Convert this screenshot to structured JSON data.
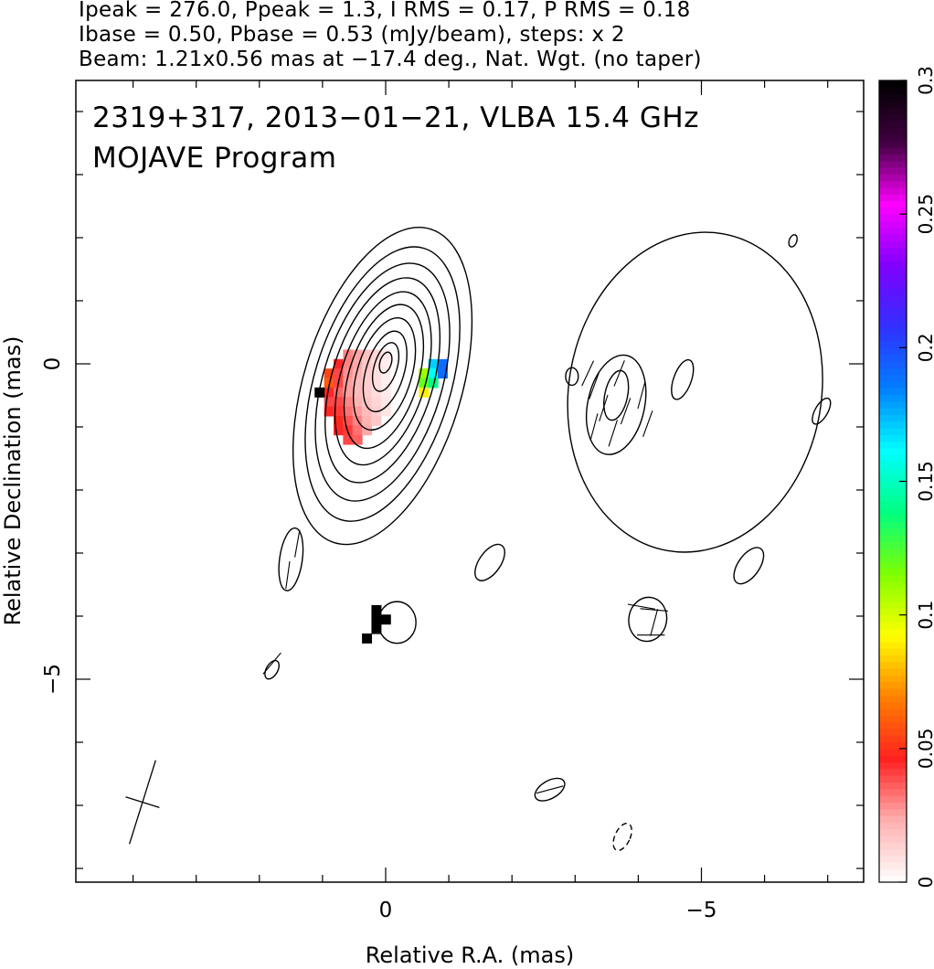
{
  "header": {
    "line1": "Ipeak = 276.0, Ppeak = 1.3, I RMS = 0.17, P RMS = 0.18",
    "line2": "Ibase = 0.50, Pbase = 0.53 (mJy/beam), steps: x 2",
    "line3": "Beam: 1.21x0.56 mas at −17.4 deg., Nat. Wgt. (no taper)"
  },
  "plot": {
    "title_line1": "2319+317, 2013−01−21, VLBA 15.4 GHz",
    "title_line2": "MOJAVE Program",
    "xlabel": "Relative R.A. (mas)",
    "ylabel": "Relative Declination (mas)",
    "x_ticks": [
      {
        "value": 0,
        "label": "0"
      },
      {
        "value": -5,
        "label": "−5"
      }
    ],
    "y_ticks": [
      {
        "value": 0,
        "label": "0"
      },
      {
        "value": -5,
        "label": "−5"
      }
    ],
    "colorbar": {
      "ticks": [
        {
          "value": 0,
          "label": "0"
        },
        {
          "value": 0.05,
          "label": "0.05"
        },
        {
          "value": 0.1,
          "label": "0.1"
        },
        {
          "value": 0.15,
          "label": "0.15"
        },
        {
          "value": 0.2,
          "label": "0.2"
        },
        {
          "value": 0.25,
          "label": "0.25"
        },
        {
          "value": 0.3,
          "label": "0.3"
        }
      ]
    }
  },
  "chart_data": {
    "type": "heatmap",
    "description_source": "VLBA total-intensity contour map with fractional polarization color overlay",
    "xlim": [
      4.9,
      -7.9
    ],
    "ylim": [
      -8.2,
      4.5
    ],
    "x_reversed": true,
    "grid": false,
    "colorbar_range": [
      0,
      0.3
    ],
    "contours": [
      {
        "name": "core-level-1",
        "cx": 0.05,
        "cy": -0.35,
        "a": 2.6,
        "b": 1.25,
        "pa": -17
      },
      {
        "name": "core-level-2",
        "cx": 0.05,
        "cy": -0.32,
        "a": 2.25,
        "b": 1.08,
        "pa": -17
      },
      {
        "name": "core-level-3",
        "cx": 0.05,
        "cy": -0.29,
        "a": 1.95,
        "b": 0.94,
        "pa": -17
      },
      {
        "name": "core-level-4",
        "cx": 0.05,
        "cy": -0.26,
        "a": 1.68,
        "b": 0.8,
        "pa": -17
      },
      {
        "name": "core-level-5",
        "cx": 0.04,
        "cy": -0.23,
        "a": 1.42,
        "b": 0.67,
        "pa": -17
      },
      {
        "name": "core-level-6",
        "cx": 0.03,
        "cy": -0.2,
        "a": 1.18,
        "b": 0.55,
        "pa": -17
      },
      {
        "name": "core-level-7",
        "cx": 0.02,
        "cy": -0.16,
        "a": 0.92,
        "b": 0.43,
        "pa": -17
      },
      {
        "name": "core-level-8",
        "cx": 0.01,
        "cy": -0.12,
        "a": 0.66,
        "b": 0.3,
        "pa": -17
      },
      {
        "name": "core-level-9",
        "cx": 0.0,
        "cy": -0.05,
        "a": 0.4,
        "b": 0.18,
        "pa": -17
      },
      {
        "name": "core-level-10",
        "cx": 0.0,
        "cy": 0.02,
        "a": 0.17,
        "b": 0.09,
        "pa": -17
      },
      {
        "name": "jet-outer",
        "cx": -4.9,
        "cy": -0.45,
        "a": 2.55,
        "b": 2.0,
        "pa": -10
      },
      {
        "name": "jet-inner",
        "cx": -3.65,
        "cy": -0.65,
        "a": 0.8,
        "b": 0.45,
        "pa": -12
      },
      {
        "name": "jet-peak",
        "cx": -3.65,
        "cy": -0.5,
        "a": 0.4,
        "b": 0.18,
        "pa": -12
      },
      {
        "name": "jet-knot-east",
        "cx": -2.95,
        "cy": -0.2,
        "a": 0.14,
        "b": 0.1,
        "pa": 0
      },
      {
        "name": "jet-knot-west",
        "cx": -4.7,
        "cy": -0.25,
        "a": 0.33,
        "b": 0.14,
        "pa": -20
      },
      {
        "name": "island-a",
        "cx": 1.5,
        "cy": -3.1,
        "a": 0.5,
        "b": 0.18,
        "pa": -8
      },
      {
        "name": "island-b",
        "cx": -1.65,
        "cy": -3.15,
        "a": 0.33,
        "b": 0.17,
        "pa": -35
      },
      {
        "name": "island-c",
        "cx": -5.75,
        "cy": -3.2,
        "a": 0.33,
        "b": 0.17,
        "pa": -35
      },
      {
        "name": "island-d",
        "cx": -0.18,
        "cy": -4.1,
        "a": 0.33,
        "b": 0.3,
        "pa": 0
      },
      {
        "name": "island-e",
        "cx": -4.15,
        "cy": -4.05,
        "a": 0.35,
        "b": 0.3,
        "pa": -10
      },
      {
        "name": "island-f",
        "cx": 1.8,
        "cy": -4.85,
        "a": 0.16,
        "b": 0.09,
        "pa": -30
      },
      {
        "name": "island-g",
        "cx": -2.6,
        "cy": -6.75,
        "a": 0.26,
        "b": 0.14,
        "pa": -60
      },
      {
        "name": "island-h",
        "cx": -6.9,
        "cy": -0.75,
        "a": 0.23,
        "b": 0.1,
        "pa": -30
      },
      {
        "name": "island-i",
        "cx": -6.45,
        "cy": 1.95,
        "a": 0.1,
        "b": 0.06,
        "pa": -20
      }
    ],
    "negative_contours": [
      {
        "name": "neg-island",
        "cx": -3.75,
        "cy": -7.5,
        "a": 0.23,
        "b": 0.12,
        "pa": -25
      }
    ],
    "beam": {
      "cx": 3.85,
      "cy": -6.95,
      "major": 1.21,
      "minor": 0.56,
      "pa": -17.4
    },
    "polarization_pixels": [
      {
        "x": 0.9,
        "y": -0.15,
        "v": 0.055
      },
      {
        "x": 0.9,
        "y": -0.3,
        "v": 0.06
      },
      {
        "x": 0.9,
        "y": -0.45,
        "v": 0.045
      },
      {
        "x": 0.9,
        "y": -0.6,
        "v": 0.04
      },
      {
        "x": 0.9,
        "y": -0.75,
        "v": 0.045
      },
      {
        "x": 0.75,
        "y": 0.0,
        "v": 0.045
      },
      {
        "x": 0.75,
        "y": -0.15,
        "v": 0.04
      },
      {
        "x": 0.75,
        "y": -0.3,
        "v": 0.04
      },
      {
        "x": 0.75,
        "y": -0.45,
        "v": 0.035
      },
      {
        "x": 0.75,
        "y": -0.6,
        "v": 0.04
      },
      {
        "x": 0.75,
        "y": -0.75,
        "v": 0.042
      },
      {
        "x": 0.75,
        "y": -0.9,
        "v": 0.048
      },
      {
        "x": 0.75,
        "y": -1.05,
        "v": 0.045
      },
      {
        "x": 0.6,
        "y": 0.15,
        "v": 0.03
      },
      {
        "x": 0.6,
        "y": 0.0,
        "v": 0.03
      },
      {
        "x": 0.6,
        "y": -0.15,
        "v": 0.028
      },
      {
        "x": 0.6,
        "y": -0.3,
        "v": 0.026
      },
      {
        "x": 0.6,
        "y": -0.45,
        "v": 0.026
      },
      {
        "x": 0.6,
        "y": -0.6,
        "v": 0.03
      },
      {
        "x": 0.6,
        "y": -0.75,
        "v": 0.033
      },
      {
        "x": 0.6,
        "y": -0.9,
        "v": 0.038
      },
      {
        "x": 0.6,
        "y": -1.05,
        "v": 0.042
      },
      {
        "x": 0.6,
        "y": -1.2,
        "v": 0.04
      },
      {
        "x": 0.45,
        "y": 0.15,
        "v": 0.025
      },
      {
        "x": 0.45,
        "y": 0.0,
        "v": 0.024
      },
      {
        "x": 0.45,
        "y": -0.15,
        "v": 0.022
      },
      {
        "x": 0.45,
        "y": -0.3,
        "v": 0.02
      },
      {
        "x": 0.45,
        "y": -0.45,
        "v": 0.02
      },
      {
        "x": 0.45,
        "y": -0.6,
        "v": 0.022
      },
      {
        "x": 0.45,
        "y": -0.75,
        "v": 0.026
      },
      {
        "x": 0.45,
        "y": -0.9,
        "v": 0.03
      },
      {
        "x": 0.45,
        "y": -1.05,
        "v": 0.033
      },
      {
        "x": 0.45,
        "y": -1.2,
        "v": 0.036
      },
      {
        "x": 0.3,
        "y": 0.15,
        "v": 0.018
      },
      {
        "x": 0.3,
        "y": 0.0,
        "v": 0.016
      },
      {
        "x": 0.3,
        "y": -0.15,
        "v": 0.015
      },
      {
        "x": 0.3,
        "y": -0.3,
        "v": 0.014
      },
      {
        "x": 0.3,
        "y": -0.45,
        "v": 0.015
      },
      {
        "x": 0.3,
        "y": -0.6,
        "v": 0.017
      },
      {
        "x": 0.3,
        "y": -0.75,
        "v": 0.02
      },
      {
        "x": 0.3,
        "y": -0.9,
        "v": 0.022
      },
      {
        "x": 0.3,
        "y": -1.05,
        "v": 0.024
      },
      {
        "x": 0.15,
        "y": 0.15,
        "v": 0.012
      },
      {
        "x": 0.15,
        "y": 0.0,
        "v": 0.01
      },
      {
        "x": 0.15,
        "y": -0.15,
        "v": 0.009
      },
      {
        "x": 0.15,
        "y": -0.3,
        "v": 0.009
      },
      {
        "x": 0.15,
        "y": -0.45,
        "v": 0.01
      },
      {
        "x": 0.15,
        "y": -0.6,
        "v": 0.012
      },
      {
        "x": 0.15,
        "y": -0.75,
        "v": 0.014
      },
      {
        "x": 0.15,
        "y": -0.9,
        "v": 0.016
      },
      {
        "x": 0.0,
        "y": 0.15,
        "v": 0.007
      },
      {
        "x": 0.0,
        "y": 0.0,
        "v": 0.005
      },
      {
        "x": 0.0,
        "y": -0.15,
        "v": 0.005
      },
      {
        "x": 0.0,
        "y": -0.3,
        "v": 0.005
      },
      {
        "x": 0.0,
        "y": -0.45,
        "v": 0.006
      },
      {
        "x": 0.0,
        "y": -0.6,
        "v": 0.007
      },
      {
        "x": 0.0,
        "y": -0.75,
        "v": 0.008
      },
      {
        "x": 1.05,
        "y": -0.45,
        "v": 0.3
      },
      {
        "x": -0.6,
        "y": -0.15,
        "v": 0.11
      },
      {
        "x": -0.6,
        "y": -0.3,
        "v": 0.12
      },
      {
        "x": -0.6,
        "y": -0.45,
        "v": 0.09
      },
      {
        "x": -0.75,
        "y": 0.0,
        "v": 0.17
      },
      {
        "x": -0.75,
        "y": -0.15,
        "v": 0.16
      },
      {
        "x": -0.75,
        "y": -0.3,
        "v": 0.14
      },
      {
        "x": -0.9,
        "y": 0.0,
        "v": 0.19
      },
      {
        "x": -0.9,
        "y": -0.15,
        "v": 0.19
      },
      {
        "x": 0.15,
        "y": -3.9,
        "v": 0.3
      },
      {
        "x": 0.15,
        "y": -4.05,
        "v": 0.3
      },
      {
        "x": 0.15,
        "y": -4.2,
        "v": 0.3
      },
      {
        "x": 0.0,
        "y": -4.05,
        "v": 0.3
      },
      {
        "x": 0.3,
        "y": -4.35,
        "v": 0.3
      }
    ],
    "evpa_ticks": [
      {
        "x": -3.3,
        "y": -0.35,
        "angle": -20
      },
      {
        "x": -3.45,
        "y": -0.7,
        "angle": -18
      },
      {
        "x": -3.3,
        "y": -1.0,
        "angle": -15
      },
      {
        "x": -3.7,
        "y": -0.15,
        "angle": -22
      },
      {
        "x": -3.8,
        "y": -0.75,
        "angle": -20
      },
      {
        "x": -3.6,
        "y": -1.1,
        "angle": -18
      },
      {
        "x": -4.05,
        "y": -0.5,
        "angle": -15
      },
      {
        "x": -3.2,
        "y": -0.15,
        "angle": -25
      },
      {
        "x": -4.15,
        "y": -0.95,
        "angle": -20
      },
      {
        "x": 1.4,
        "y": -2.85,
        "angle": -10
      },
      {
        "x": 1.55,
        "y": -3.35,
        "angle": -8
      },
      {
        "x": 1.8,
        "y": -4.75,
        "angle": -40
      },
      {
        "x": -4.25,
        "y": -3.9,
        "angle": 85
      },
      {
        "x": -4.25,
        "y": -4.1,
        "angle": -15
      },
      {
        "x": -4.05,
        "y": -3.85,
        "angle": 80
      },
      {
        "x": -4.2,
        "y": -4.3,
        "angle": 90
      },
      {
        "x": -2.6,
        "y": -6.75,
        "angle": -75
      }
    ]
  },
  "colors": {
    "background": "#ffffff",
    "contour": "#000000",
    "colormap": [
      "#ffffff",
      "#ffb0b0",
      "#ff2020",
      "#ff8000",
      "#ffff00",
      "#80ff00",
      "#00ff80",
      "#00ffff",
      "#0080ff",
      "#3030ff",
      "#8000ff",
      "#ff00ff",
      "#400040",
      "#000000"
    ]
  }
}
